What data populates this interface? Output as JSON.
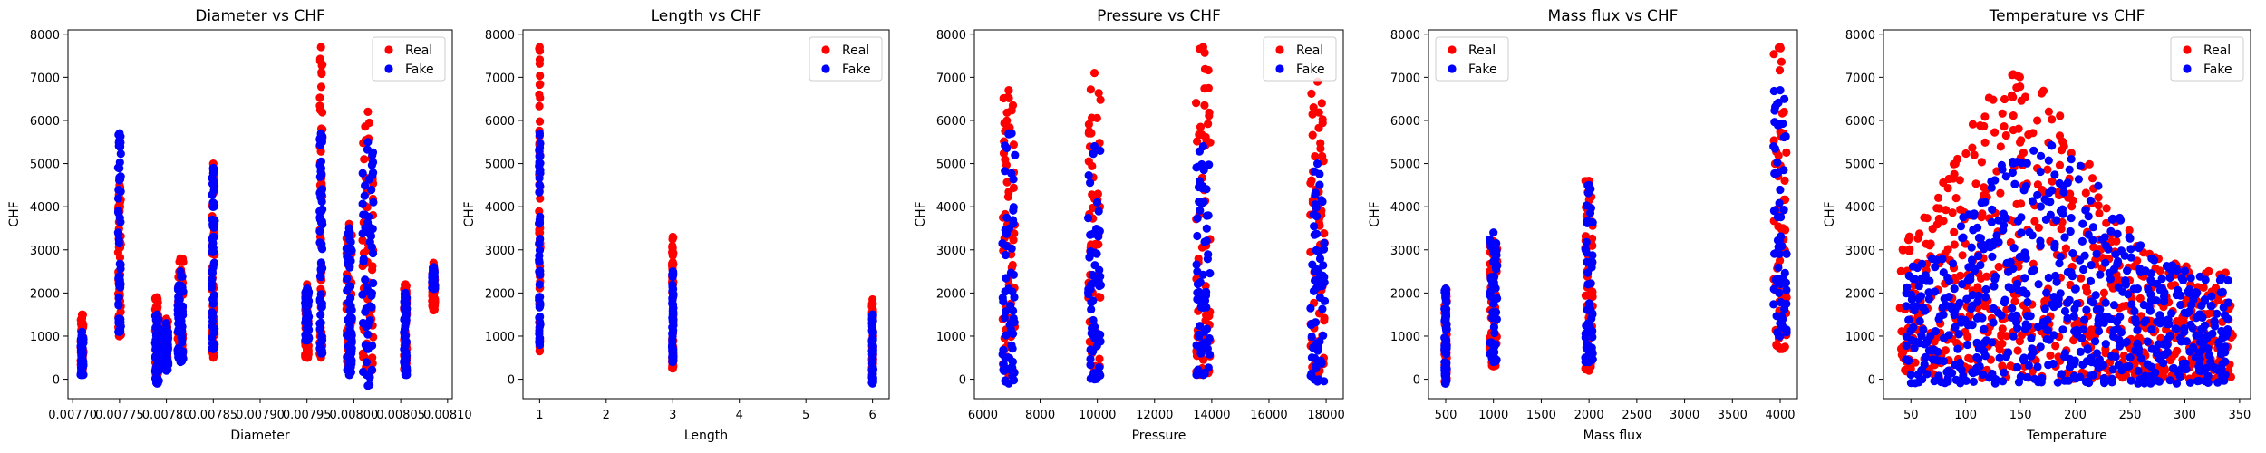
{
  "figure": {
    "background": "#ffffff",
    "real_color": "#ff0000",
    "fake_color": "#0000ff"
  },
  "chart_data": [
    {
      "type": "scatter",
      "title": "Diameter vs CHF",
      "xlabel": "Diameter",
      "ylabel": "CHF",
      "xlim": [
        0.007695,
        0.008105
      ],
      "ylim": [
        -450,
        8100
      ],
      "xticks": [
        0.0077,
        0.00775,
        0.0078,
        0.00785,
        0.0079,
        0.00795,
        0.008,
        0.00805,
        0.0081
      ],
      "xtick_labels": [
        "0.00770",
        "0.00775",
        "0.00780",
        "0.00785",
        "0.00790",
        "0.00795",
        "0.00800",
        "0.00805",
        "0.00810"
      ],
      "yticks": [
        0,
        1000,
        2000,
        3000,
        4000,
        5000,
        6000,
        7000,
        8000
      ],
      "ytick_labels": [
        "0",
        "1000",
        "2000",
        "3000",
        "4000",
        "5000",
        "6000",
        "7000",
        "8000"
      ],
      "legend": {
        "position": "top-right",
        "entries": [
          "Real",
          "Fake"
        ]
      },
      "grid": false,
      "series": [
        {
          "name": "Real",
          "color": "#ff0000",
          "x_mode": "clusters",
          "clusters": [
            {
              "x": 0.00771,
              "jitter": 1.5e-06,
              "y": [
                150,
                1500
              ]
            },
            {
              "x": 0.00775,
              "jitter": 1.5e-06,
              "y": [
                1000,
                4500
              ]
            },
            {
              "x": 0.00779,
              "jitter": 2e-06,
              "y": [
                100,
                1900
              ]
            },
            {
              "x": 0.0078,
              "jitter": 2e-06,
              "y": [
                300,
                1400
              ]
            },
            {
              "x": 0.007815,
              "jitter": 3e-06,
              "y": [
                500,
                2800
              ]
            },
            {
              "x": 0.00785,
              "jitter": 1.5e-06,
              "y": [
                500,
                5000
              ]
            },
            {
              "x": 0.00795,
              "jitter": 2e-06,
              "y": [
                500,
                2200
              ]
            },
            {
              "x": 0.007965,
              "jitter": 1.5e-06,
              "y": [
                500,
                7700
              ]
            },
            {
              "x": 0.007995,
              "jitter": 3e-06,
              "y": [
                300,
                3600
              ]
            },
            {
              "x": 0.008015,
              "jitter": 6e-06,
              "y": [
                200,
                6200
              ]
            },
            {
              "x": 0.008055,
              "jitter": 1.5e-06,
              "y": [
                200,
                2200
              ]
            },
            {
              "x": 0.008085,
              "jitter": 1.5e-06,
              "y": [
                1600,
                2700
              ]
            }
          ]
        },
        {
          "name": "Fake",
          "color": "#0000ff",
          "x_mode": "clusters",
          "clusters": [
            {
              "x": 0.00771,
              "jitter": 1.5e-06,
              "y": [
                100,
                1100
              ]
            },
            {
              "x": 0.00775,
              "jitter": 1.5e-06,
              "y": [
                1100,
                5700
              ]
            },
            {
              "x": 0.00779,
              "jitter": 2e-06,
              "y": [
                -100,
                1500
              ]
            },
            {
              "x": 0.0078,
              "jitter": 2e-06,
              "y": [
                200,
                1300
              ]
            },
            {
              "x": 0.007815,
              "jitter": 3e-06,
              "y": [
                400,
                2500
              ]
            },
            {
              "x": 0.00785,
              "jitter": 1.5e-06,
              "y": [
                700,
                4900
              ]
            },
            {
              "x": 0.00795,
              "jitter": 2e-06,
              "y": [
                900,
                2100
              ]
            },
            {
              "x": 0.007965,
              "jitter": 1.5e-06,
              "y": [
                600,
                5700
              ]
            },
            {
              "x": 0.007995,
              "jitter": 3e-06,
              "y": [
                100,
                3500
              ]
            },
            {
              "x": 0.008015,
              "jitter": 6e-06,
              "y": [
                -150,
                5500
              ]
            },
            {
              "x": 0.008055,
              "jitter": 1.5e-06,
              "y": [
                100,
                2000
              ]
            },
            {
              "x": 0.008085,
              "jitter": 1.5e-06,
              "y": [
                2100,
                2600
              ]
            }
          ]
        }
      ]
    },
    {
      "type": "scatter",
      "title": "Length vs CHF",
      "xlabel": "Length",
      "ylabel": "CHF",
      "xlim": [
        0.75,
        6.25
      ],
      "ylim": [
        -450,
        8100
      ],
      "xticks": [
        1,
        2,
        3,
        4,
        5,
        6
      ],
      "xtick_labels": [
        "1",
        "2",
        "3",
        "4",
        "5",
        "6"
      ],
      "yticks": [
        0,
        1000,
        2000,
        3000,
        4000,
        5000,
        6000,
        7000,
        8000
      ],
      "ytick_labels": [
        "0",
        "1000",
        "2000",
        "3000",
        "4000",
        "5000",
        "6000",
        "7000",
        "8000"
      ],
      "legend": {
        "position": "top-right",
        "entries": [
          "Real",
          "Fake"
        ]
      },
      "grid": false,
      "series": [
        {
          "name": "Real",
          "color": "#ff0000",
          "x_mode": "clusters",
          "clusters": [
            {
              "x": 1,
              "jitter": 0.01,
              "y": [
                650,
                7700
              ]
            },
            {
              "x": 3,
              "jitter": 0.01,
              "y": [
                250,
                3300
              ]
            },
            {
              "x": 6,
              "jitter": 0.01,
              "y": [
                -50,
                1850
              ]
            }
          ]
        },
        {
          "name": "Fake",
          "color": "#0000ff",
          "x_mode": "clusters",
          "clusters": [
            {
              "x": 1,
              "jitter": 0.01,
              "y": [
                800,
                5700
              ]
            },
            {
              "x": 3,
              "jitter": 0.01,
              "y": [
                400,
                2500
              ]
            },
            {
              "x": 6,
              "jitter": 0.01,
              "y": [
                -100,
                1500
              ]
            }
          ]
        }
      ]
    },
    {
      "type": "scatter",
      "title": "Pressure vs CHF",
      "xlabel": "Pressure",
      "ylabel": "CHF",
      "xlim": [
        5700,
        18600
      ],
      "ylim": [
        -450,
        8100
      ],
      "xticks": [
        6000,
        8000,
        10000,
        12000,
        14000,
        16000,
        18000
      ],
      "xtick_labels": [
        "6000",
        "8000",
        "10000",
        "12000",
        "14000",
        "16000",
        "18000"
      ],
      "yticks": [
        0,
        1000,
        2000,
        3000,
        4000,
        5000,
        6000,
        7000,
        8000
      ],
      "ytick_labels": [
        "0",
        "1000",
        "2000",
        "3000",
        "4000",
        "5000",
        "6000",
        "7000",
        "8000"
      ],
      "legend": {
        "position": "top-right",
        "entries": [
          "Real",
          "Fake"
        ]
      },
      "grid": false,
      "series": [
        {
          "name": "Real",
          "color": "#ff0000",
          "x_mode": "clusters",
          "clusters": [
            {
              "x": 6900,
              "jitter": 220,
              "y": [
                100,
                6700
              ]
            },
            {
              "x": 9900,
              "jitter": 220,
              "y": [
                200,
                7100
              ]
            },
            {
              "x": 13700,
              "jitter": 250,
              "y": [
                100,
                7700
              ]
            },
            {
              "x": 17700,
              "jitter": 250,
              "y": [
                100,
                6900
              ]
            }
          ]
        },
        {
          "name": "Fake",
          "color": "#0000ff",
          "x_mode": "clusters",
          "clusters": [
            {
              "x": 6900,
              "jitter": 220,
              "y": [
                -100,
                5700
              ]
            },
            {
              "x": 9900,
              "jitter": 220,
              "y": [
                0,
                5400
              ]
            },
            {
              "x": 13700,
              "jitter": 250,
              "y": [
                100,
                5400
              ]
            },
            {
              "x": 17700,
              "jitter": 250,
              "y": [
                -50,
                5000
              ]
            }
          ]
        }
      ]
    },
    {
      "type": "scatter",
      "title": "Mass flux vs CHF",
      "xlabel": "Mass flux",
      "ylabel": "CHF",
      "xlim": [
        320,
        4180
      ],
      "ylim": [
        -450,
        8100
      ],
      "xticks": [
        500,
        1000,
        1500,
        2000,
        2500,
        3000,
        3500,
        4000
      ],
      "xtick_labels": [
        "500",
        "1000",
        "1500",
        "2000",
        "2500",
        "3000",
        "3500",
        "4000"
      ],
      "yticks": [
        0,
        1000,
        2000,
        3000,
        4000,
        5000,
        6000,
        7000,
        8000
      ],
      "ytick_labels": [
        "0",
        "1000",
        "2000",
        "3000",
        "4000",
        "5000",
        "6000",
        "7000",
        "8000"
      ],
      "legend": {
        "position": "top-left",
        "entries": [
          "Real",
          "Fake"
        ]
      },
      "grid": false,
      "series": [
        {
          "name": "Real",
          "color": "#ff0000",
          "x_mode": "clusters",
          "clusters": [
            {
              "x": 500,
              "jitter": 12,
              "y": [
                -50,
                2100
              ]
            },
            {
              "x": 1000,
              "jitter": 40,
              "y": [
                300,
                3200
              ]
            },
            {
              "x": 2000,
              "jitter": 40,
              "y": [
                200,
                4600
              ]
            },
            {
              "x": 4000,
              "jitter": 70,
              "y": [
                700,
                7700
              ]
            }
          ]
        },
        {
          "name": "Fake",
          "color": "#0000ff",
          "x_mode": "clusters",
          "clusters": [
            {
              "x": 500,
              "jitter": 12,
              "y": [
                -100,
                2100
              ]
            },
            {
              "x": 1000,
              "jitter": 40,
              "y": [
                400,
                3400
              ]
            },
            {
              "x": 2000,
              "jitter": 40,
              "y": [
                400,
                4500
              ]
            },
            {
              "x": 4000,
              "jitter": 70,
              "y": [
                1000,
                6700
              ]
            }
          ]
        }
      ]
    },
    {
      "type": "scatter",
      "title": "Temperature vs CHF",
      "xlabel": "Temperature",
      "ylabel": "CHF",
      "xlim": [
        25,
        360
      ],
      "ylim": [
        -450,
        8100
      ],
      "xticks": [
        50,
        100,
        150,
        200,
        250,
        300,
        350
      ],
      "xtick_labels": [
        "50",
        "100",
        "150",
        "200",
        "250",
        "300",
        "350"
      ],
      "yticks": [
        0,
        1000,
        2000,
        3000,
        4000,
        5000,
        6000,
        7000,
        8000
      ],
      "ytick_labels": [
        "0",
        "1000",
        "2000",
        "3000",
        "4000",
        "5000",
        "6000",
        "7000",
        "8000"
      ],
      "legend": {
        "position": "top-right",
        "entries": [
          "Real",
          "Fake"
        ]
      },
      "grid": false,
      "series": [
        {
          "name": "Real",
          "color": "#ff0000",
          "x_mode": "spread",
          "x_range": [
            40,
            345
          ],
          "y_base": [
            0,
            2500
          ],
          "hump": {
            "center": 150,
            "width": 80,
            "height": 4700
          }
        },
        {
          "name": "Fake",
          "color": "#0000ff",
          "x_mode": "spread",
          "x_range": [
            45,
            340
          ],
          "y_base": [
            -100,
            2300
          ],
          "hump": {
            "center": 170,
            "width": 80,
            "height": 3300
          }
        }
      ]
    }
  ]
}
